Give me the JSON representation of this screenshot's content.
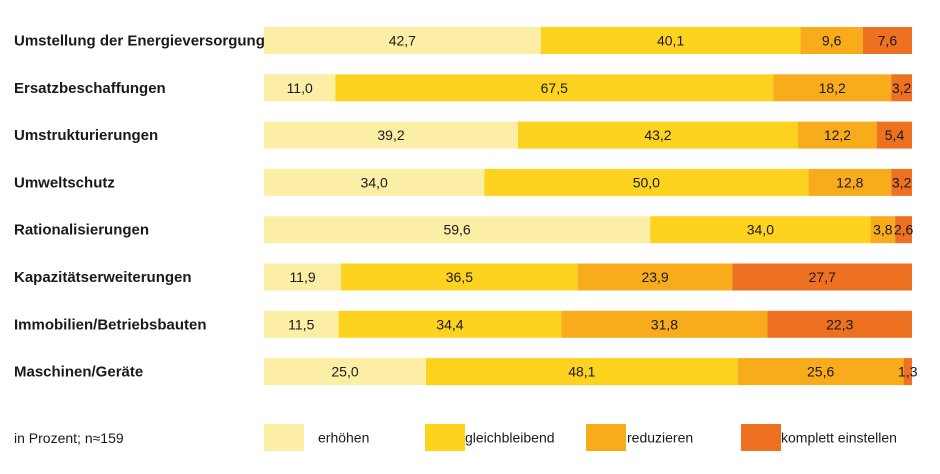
{
  "chart_data": {
    "type": "bar",
    "orientation": "horizontal",
    "stacked": true,
    "normalized": true,
    "categories": [
      "Umstellung der Energieversorgung",
      "Ersatzbeschaffungen",
      "Umstrukturierungen",
      "Umweltschutz",
      "Rationalisierungen",
      "Kapazitätserweiterungen",
      "Immobilien/Betriebsbauten",
      "Maschinen/Geräte"
    ],
    "series": [
      {
        "name": "erhöhen",
        "color": "#fdeea6",
        "values": [
          42.7,
          11.0,
          39.2,
          34.0,
          59.6,
          11.9,
          11.5,
          25.0
        ],
        "labels": [
          "42,7",
          "11,0",
          "39,2",
          "34,0",
          "59,6",
          "11,9",
          "11,5",
          "25,0"
        ]
      },
      {
        "name": "gleichbleibend",
        "color": "#fdd31f",
        "values": [
          40.1,
          67.5,
          43.2,
          50.0,
          34.0,
          36.5,
          34.4,
          48.1
        ],
        "labels": [
          "40,1",
          "67,5",
          "43,2",
          "50,0",
          "34,0",
          "36,5",
          "34,4",
          "48,1"
        ]
      },
      {
        "name": "reduzieren",
        "color": "#f8ac1c",
        "values": [
          9.6,
          18.2,
          12.2,
          12.8,
          3.8,
          23.9,
          31.8,
          25.6
        ],
        "labels": [
          "9,6",
          "18,2",
          "12,2",
          "12,8",
          "3,8",
          "23,9",
          "31,8",
          "25,6"
        ]
      },
      {
        "name": "komplett einstellen",
        "color": "#ee7021",
        "values": [
          7.6,
          3.2,
          5.4,
          3.2,
          2.6,
          27.7,
          22.3,
          1.3
        ],
        "labels": [
          "7,6",
          "3,2",
          "5,4",
          "3,2",
          "2,6",
          "27,7",
          "22,3",
          "1,3"
        ]
      }
    ],
    "note": "in Prozent; n≈159",
    "legend_position": "bottom",
    "grid": false
  }
}
